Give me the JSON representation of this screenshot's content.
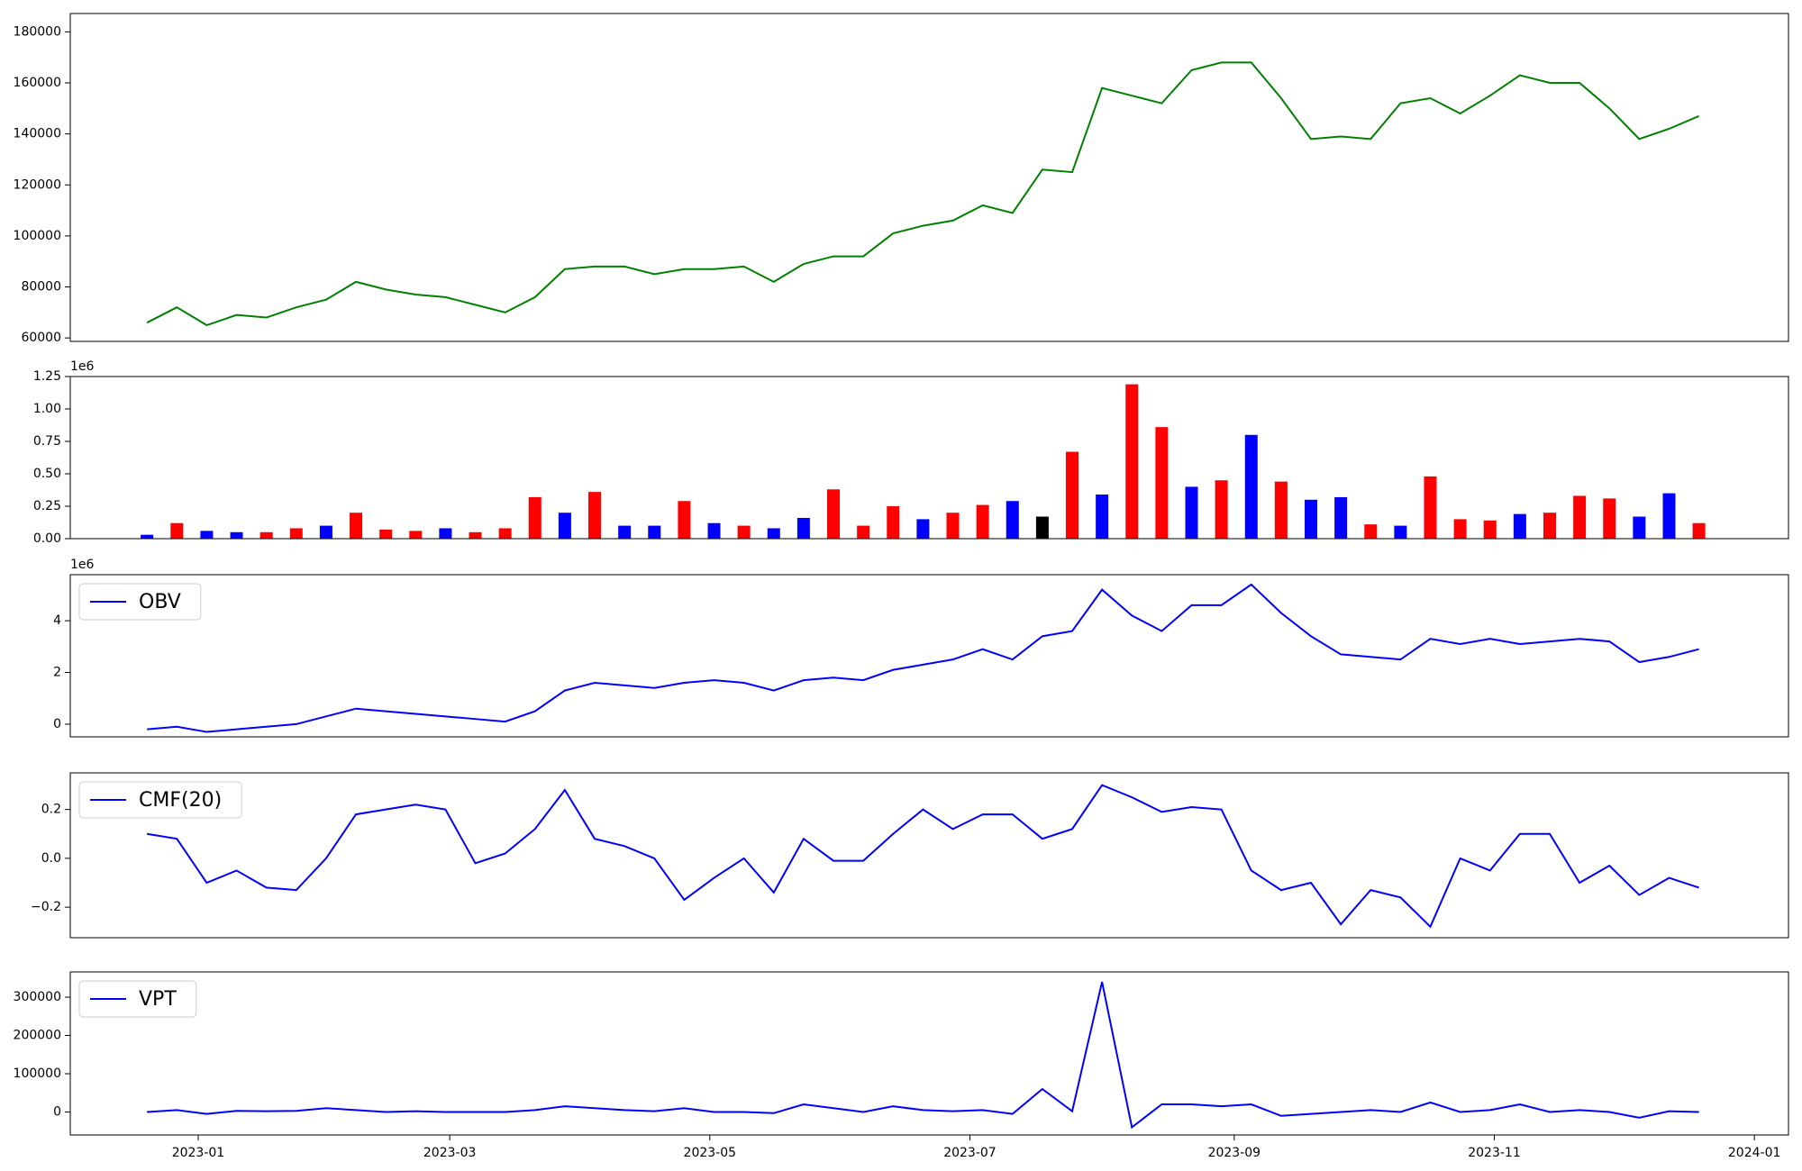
{
  "chart_data": [
    {
      "type": "line",
      "x": [
        "2022-12-20",
        "2022-12-27",
        "2023-01-03",
        "2023-01-10",
        "2023-01-17",
        "2023-01-24",
        "2023-01-31",
        "2023-02-07",
        "2023-02-14",
        "2023-02-21",
        "2023-02-28",
        "2023-03-07",
        "2023-03-14",
        "2023-03-21",
        "2023-03-28",
        "2023-04-04",
        "2023-04-11",
        "2023-04-18",
        "2023-04-25",
        "2023-05-02",
        "2023-05-09",
        "2023-05-16",
        "2023-05-23",
        "2023-05-30",
        "2023-06-06",
        "2023-06-13",
        "2023-06-20",
        "2023-06-27",
        "2023-07-04",
        "2023-07-11",
        "2023-07-18",
        "2023-07-25",
        "2023-08-01",
        "2023-08-08",
        "2023-08-15",
        "2023-08-22",
        "2023-08-29",
        "2023-09-05",
        "2023-09-12",
        "2023-09-19",
        "2023-09-26",
        "2023-10-03",
        "2023-10-10",
        "2023-10-17",
        "2023-10-24",
        "2023-10-31",
        "2023-11-07",
        "2023-11-14",
        "2023-11-21",
        "2023-11-28",
        "2023-12-05",
        "2023-12-12",
        "2023-12-19"
      ],
      "series": [
        {
          "color": "green",
          "values": [
            66000,
            72000,
            65000,
            69000,
            68000,
            72000,
            75000,
            82000,
            79000,
            77000,
            76000,
            73000,
            70000,
            76000,
            87000,
            88000,
            88000,
            85000,
            87000,
            87000,
            88000,
            82000,
            89000,
            92000,
            92000,
            101000,
            104000,
            106000,
            112000,
            109000,
            126000,
            125000,
            158000,
            155000,
            152000,
            165000,
            168000,
            168000,
            154000,
            138000,
            139000,
            138000,
            152000,
            154000,
            148000,
            155000,
            163000,
            160000,
            160000,
            150000,
            138000,
            142000,
            147000
          ]
        }
      ],
      "xlim": [
        "2022-12-02",
        "2024-01-09"
      ],
      "ylim": [
        58650,
        187200
      ],
      "yticks": [
        60000,
        80000,
        100000,
        120000,
        140000,
        160000,
        180000
      ]
    },
    {
      "type": "bar",
      "x": [
        "2022-12-20",
        "2022-12-27",
        "2023-01-03",
        "2023-01-10",
        "2023-01-17",
        "2023-01-24",
        "2023-01-31",
        "2023-02-07",
        "2023-02-14",
        "2023-02-21",
        "2023-02-28",
        "2023-03-07",
        "2023-03-14",
        "2023-03-21",
        "2023-03-28",
        "2023-04-04",
        "2023-04-11",
        "2023-04-18",
        "2023-04-25",
        "2023-05-02",
        "2023-05-09",
        "2023-05-16",
        "2023-05-23",
        "2023-05-30",
        "2023-06-06",
        "2023-06-13",
        "2023-06-20",
        "2023-06-27",
        "2023-07-04",
        "2023-07-11",
        "2023-07-18",
        "2023-07-25",
        "2023-08-01",
        "2023-08-08",
        "2023-08-15",
        "2023-08-22",
        "2023-08-29",
        "2023-09-05",
        "2023-09-12",
        "2023-09-19",
        "2023-09-26",
        "2023-10-03",
        "2023-10-10",
        "2023-10-17",
        "2023-10-24",
        "2023-10-31",
        "2023-11-07",
        "2023-11-14",
        "2023-11-21",
        "2023-11-28",
        "2023-12-05",
        "2023-12-12",
        "2023-12-19"
      ],
      "values": [
        30000,
        120000,
        60000,
        50000,
        50000,
        80000,
        100000,
        200000,
        70000,
        60000,
        80000,
        50000,
        80000,
        320000,
        200000,
        360000,
        100000,
        100000,
        290000,
        120000,
        100000,
        80000,
        160000,
        380000,
        100000,
        250000,
        150000,
        200000,
        260000,
        290000,
        170000,
        670000,
        340000,
        1190000,
        860000,
        400000,
        450000,
        800000,
        440000,
        300000,
        320000,
        110000,
        100000,
        480000,
        150000,
        140000,
        190000,
        200000,
        330000,
        310000,
        170000,
        350000,
        120000
      ],
      "colors": [
        "blue",
        "red",
        "blue",
        "blue",
        "red",
        "red",
        "blue",
        "red",
        "red",
        "red",
        "blue",
        "red",
        "red",
        "red",
        "blue",
        "red",
        "blue",
        "blue",
        "red",
        "blue",
        "red",
        "blue",
        "blue",
        "red",
        "red",
        "red",
        "blue",
        "red",
        "red",
        "blue",
        "black",
        "red",
        "blue",
        "red",
        "red",
        "blue",
        "red",
        "blue",
        "red",
        "blue",
        "blue",
        "red",
        "blue",
        "red",
        "red",
        "red",
        "blue",
        "red",
        "red",
        "red",
        "blue",
        "blue",
        "red"
      ],
      "offset_label": "1e6",
      "xlim": [
        "2022-12-02",
        "2024-01-09"
      ],
      "ylim": [
        0,
        1250000
      ],
      "yticks": [
        {
          "value": 0,
          "label": "0.00"
        },
        {
          "value": 250000,
          "label": "0.25"
        },
        {
          "value": 500000,
          "label": "0.50"
        },
        {
          "value": 750000,
          "label": "0.75"
        },
        {
          "value": 1000000,
          "label": "1.00"
        },
        {
          "value": 1250000,
          "label": "1.25"
        }
      ]
    },
    {
      "type": "line",
      "x": [
        "2022-12-20",
        "2022-12-27",
        "2023-01-03",
        "2023-01-10",
        "2023-01-17",
        "2023-01-24",
        "2023-01-31",
        "2023-02-07",
        "2023-02-14",
        "2023-02-21",
        "2023-02-28",
        "2023-03-07",
        "2023-03-14",
        "2023-03-21",
        "2023-03-28",
        "2023-04-04",
        "2023-04-11",
        "2023-04-18",
        "2023-04-25",
        "2023-05-02",
        "2023-05-09",
        "2023-05-16",
        "2023-05-23",
        "2023-05-30",
        "2023-06-06",
        "2023-06-13",
        "2023-06-20",
        "2023-06-27",
        "2023-07-04",
        "2023-07-11",
        "2023-07-18",
        "2023-07-25",
        "2023-08-01",
        "2023-08-08",
        "2023-08-15",
        "2023-08-22",
        "2023-08-29",
        "2023-09-05",
        "2023-09-12",
        "2023-09-19",
        "2023-09-26",
        "2023-10-03",
        "2023-10-10",
        "2023-10-17",
        "2023-10-24",
        "2023-10-31",
        "2023-11-07",
        "2023-11-14",
        "2023-11-21",
        "2023-11-28",
        "2023-12-05",
        "2023-12-12",
        "2023-12-19"
      ],
      "series": [
        {
          "name": "OBV",
          "color": "blue",
          "values": [
            -200000,
            -100000,
            -300000,
            -200000,
            -100000,
            0,
            300000,
            600000,
            500000,
            400000,
            300000,
            200000,
            100000,
            500000,
            1300000,
            1600000,
            1500000,
            1400000,
            1600000,
            1700000,
            1600000,
            1300000,
            1700000,
            1800000,
            1700000,
            2100000,
            2300000,
            2500000,
            2900000,
            2500000,
            3400000,
            3600000,
            5200000,
            4200000,
            3600000,
            4600000,
            4600000,
            5400000,
            4300000,
            3400000,
            2700000,
            2600000,
            2500000,
            3300000,
            3100000,
            3300000,
            3100000,
            3200000,
            3300000,
            3200000,
            2400000,
            2600000,
            2900000
          ]
        }
      ],
      "offset_label": "1e6",
      "legend": "upper left",
      "xlim": [
        "2022-12-02",
        "2024-01-09"
      ],
      "ylim": [
        -490000,
        5780000
      ],
      "yticks": [
        {
          "value": 0,
          "label": "0"
        },
        {
          "value": 2000000,
          "label": "2"
        },
        {
          "value": 4000000,
          "label": "4"
        }
      ]
    },
    {
      "type": "line",
      "x": [
        "2022-12-20",
        "2022-12-27",
        "2023-01-03",
        "2023-01-10",
        "2023-01-17",
        "2023-01-24",
        "2023-01-31",
        "2023-02-07",
        "2023-02-14",
        "2023-02-21",
        "2023-02-28",
        "2023-03-07",
        "2023-03-14",
        "2023-03-21",
        "2023-03-28",
        "2023-04-04",
        "2023-04-11",
        "2023-04-18",
        "2023-04-25",
        "2023-05-02",
        "2023-05-09",
        "2023-05-16",
        "2023-05-23",
        "2023-05-30",
        "2023-06-06",
        "2023-06-13",
        "2023-06-20",
        "2023-06-27",
        "2023-07-04",
        "2023-07-11",
        "2023-07-18",
        "2023-07-25",
        "2023-08-01",
        "2023-08-08",
        "2023-08-15",
        "2023-08-22",
        "2023-08-29",
        "2023-09-05",
        "2023-09-12",
        "2023-09-19",
        "2023-09-26",
        "2023-10-03",
        "2023-10-10",
        "2023-10-17",
        "2023-10-24",
        "2023-10-31",
        "2023-11-07",
        "2023-11-14",
        "2023-11-21",
        "2023-11-28",
        "2023-12-05",
        "2023-12-12",
        "2023-12-19"
      ],
      "series": [
        {
          "name": "CMF(20)",
          "color": "blue",
          "values": [
            0.1,
            0.08,
            -0.1,
            -0.05,
            -0.12,
            -0.13,
            0.0,
            0.18,
            0.2,
            0.22,
            0.2,
            -0.02,
            0.02,
            0.12,
            0.28,
            0.08,
            0.05,
            0.0,
            -0.17,
            -0.08,
            0.0,
            -0.14,
            0.08,
            -0.01,
            -0.01,
            0.1,
            0.2,
            0.12,
            0.18,
            0.18,
            0.08,
            0.12,
            0.3,
            0.25,
            0.19,
            0.21,
            0.2,
            -0.05,
            -0.13,
            -0.1,
            -0.27,
            -0.13,
            -0.16,
            -0.28,
            0.0,
            -0.05,
            0.1,
            0.1,
            -0.1,
            -0.03,
            -0.15,
            -0.08,
            -0.12
          ]
        }
      ],
      "legend": "upper left",
      "xlim": [
        "2022-12-02",
        "2024-01-09"
      ],
      "ylim": [
        -0.325,
        0.35
      ],
      "yticks": [
        {
          "value": -0.2,
          "label": "−0.2"
        },
        {
          "value": 0,
          "label": "0.0"
        },
        0.2
      ]
    },
    {
      "type": "line",
      "x": [
        "2022-12-20",
        "2022-12-27",
        "2023-01-03",
        "2023-01-10",
        "2023-01-17",
        "2023-01-24",
        "2023-01-31",
        "2023-02-07",
        "2023-02-14",
        "2023-02-21",
        "2023-02-28",
        "2023-03-07",
        "2023-03-14",
        "2023-03-21",
        "2023-03-28",
        "2023-04-04",
        "2023-04-11",
        "2023-04-18",
        "2023-04-25",
        "2023-05-02",
        "2023-05-09",
        "2023-05-16",
        "2023-05-23",
        "2023-05-30",
        "2023-06-06",
        "2023-06-13",
        "2023-06-20",
        "2023-06-27",
        "2023-07-04",
        "2023-07-11",
        "2023-07-18",
        "2023-07-25",
        "2023-08-01",
        "2023-08-08",
        "2023-08-15",
        "2023-08-22",
        "2023-08-29",
        "2023-09-05",
        "2023-09-12",
        "2023-09-19",
        "2023-09-26",
        "2023-10-03",
        "2023-10-10",
        "2023-10-17",
        "2023-10-24",
        "2023-10-31",
        "2023-11-07",
        "2023-11-14",
        "2023-11-21",
        "2023-11-28",
        "2023-12-05",
        "2023-12-12",
        "2023-12-19"
      ],
      "series": [
        {
          "name": "VPT",
          "color": "blue",
          "values": [
            0,
            5000,
            -5000,
            3000,
            2000,
            3000,
            10000,
            5000,
            0,
            2000,
            0,
            0,
            0,
            5000,
            15000,
            10000,
            5000,
            2000,
            10000,
            0,
            0,
            -3000,
            20000,
            10000,
            0,
            15000,
            5000,
            2000,
            5000,
            -5000,
            60000,
            2000,
            340000,
            -40000,
            20000,
            20000,
            15000,
            20000,
            -10000,
            -5000,
            0,
            5000,
            0,
            25000,
            0,
            5000,
            20000,
            0,
            5000,
            0,
            -15000,
            2000,
            0
          ]
        }
      ],
      "legend": "upper left",
      "xlim": [
        "2022-12-02",
        "2024-01-09"
      ],
      "ylim": [
        -60000,
        366000
      ],
      "yticks": [
        0,
        100000,
        200000,
        300000
      ],
      "xticks": [
        {
          "value": "2023-01-01",
          "label": "2023-01"
        },
        {
          "value": "2023-03-01",
          "label": "2023-03"
        },
        {
          "value": "2023-05-01",
          "label": "2023-05"
        },
        {
          "value": "2023-07-01",
          "label": "2023-07"
        },
        {
          "value": "2023-09-01",
          "label": "2023-09"
        },
        {
          "value": "2023-11-01",
          "label": "2023-11"
        },
        {
          "value": "2024-01-01",
          "label": "2024-01"
        }
      ]
    }
  ]
}
